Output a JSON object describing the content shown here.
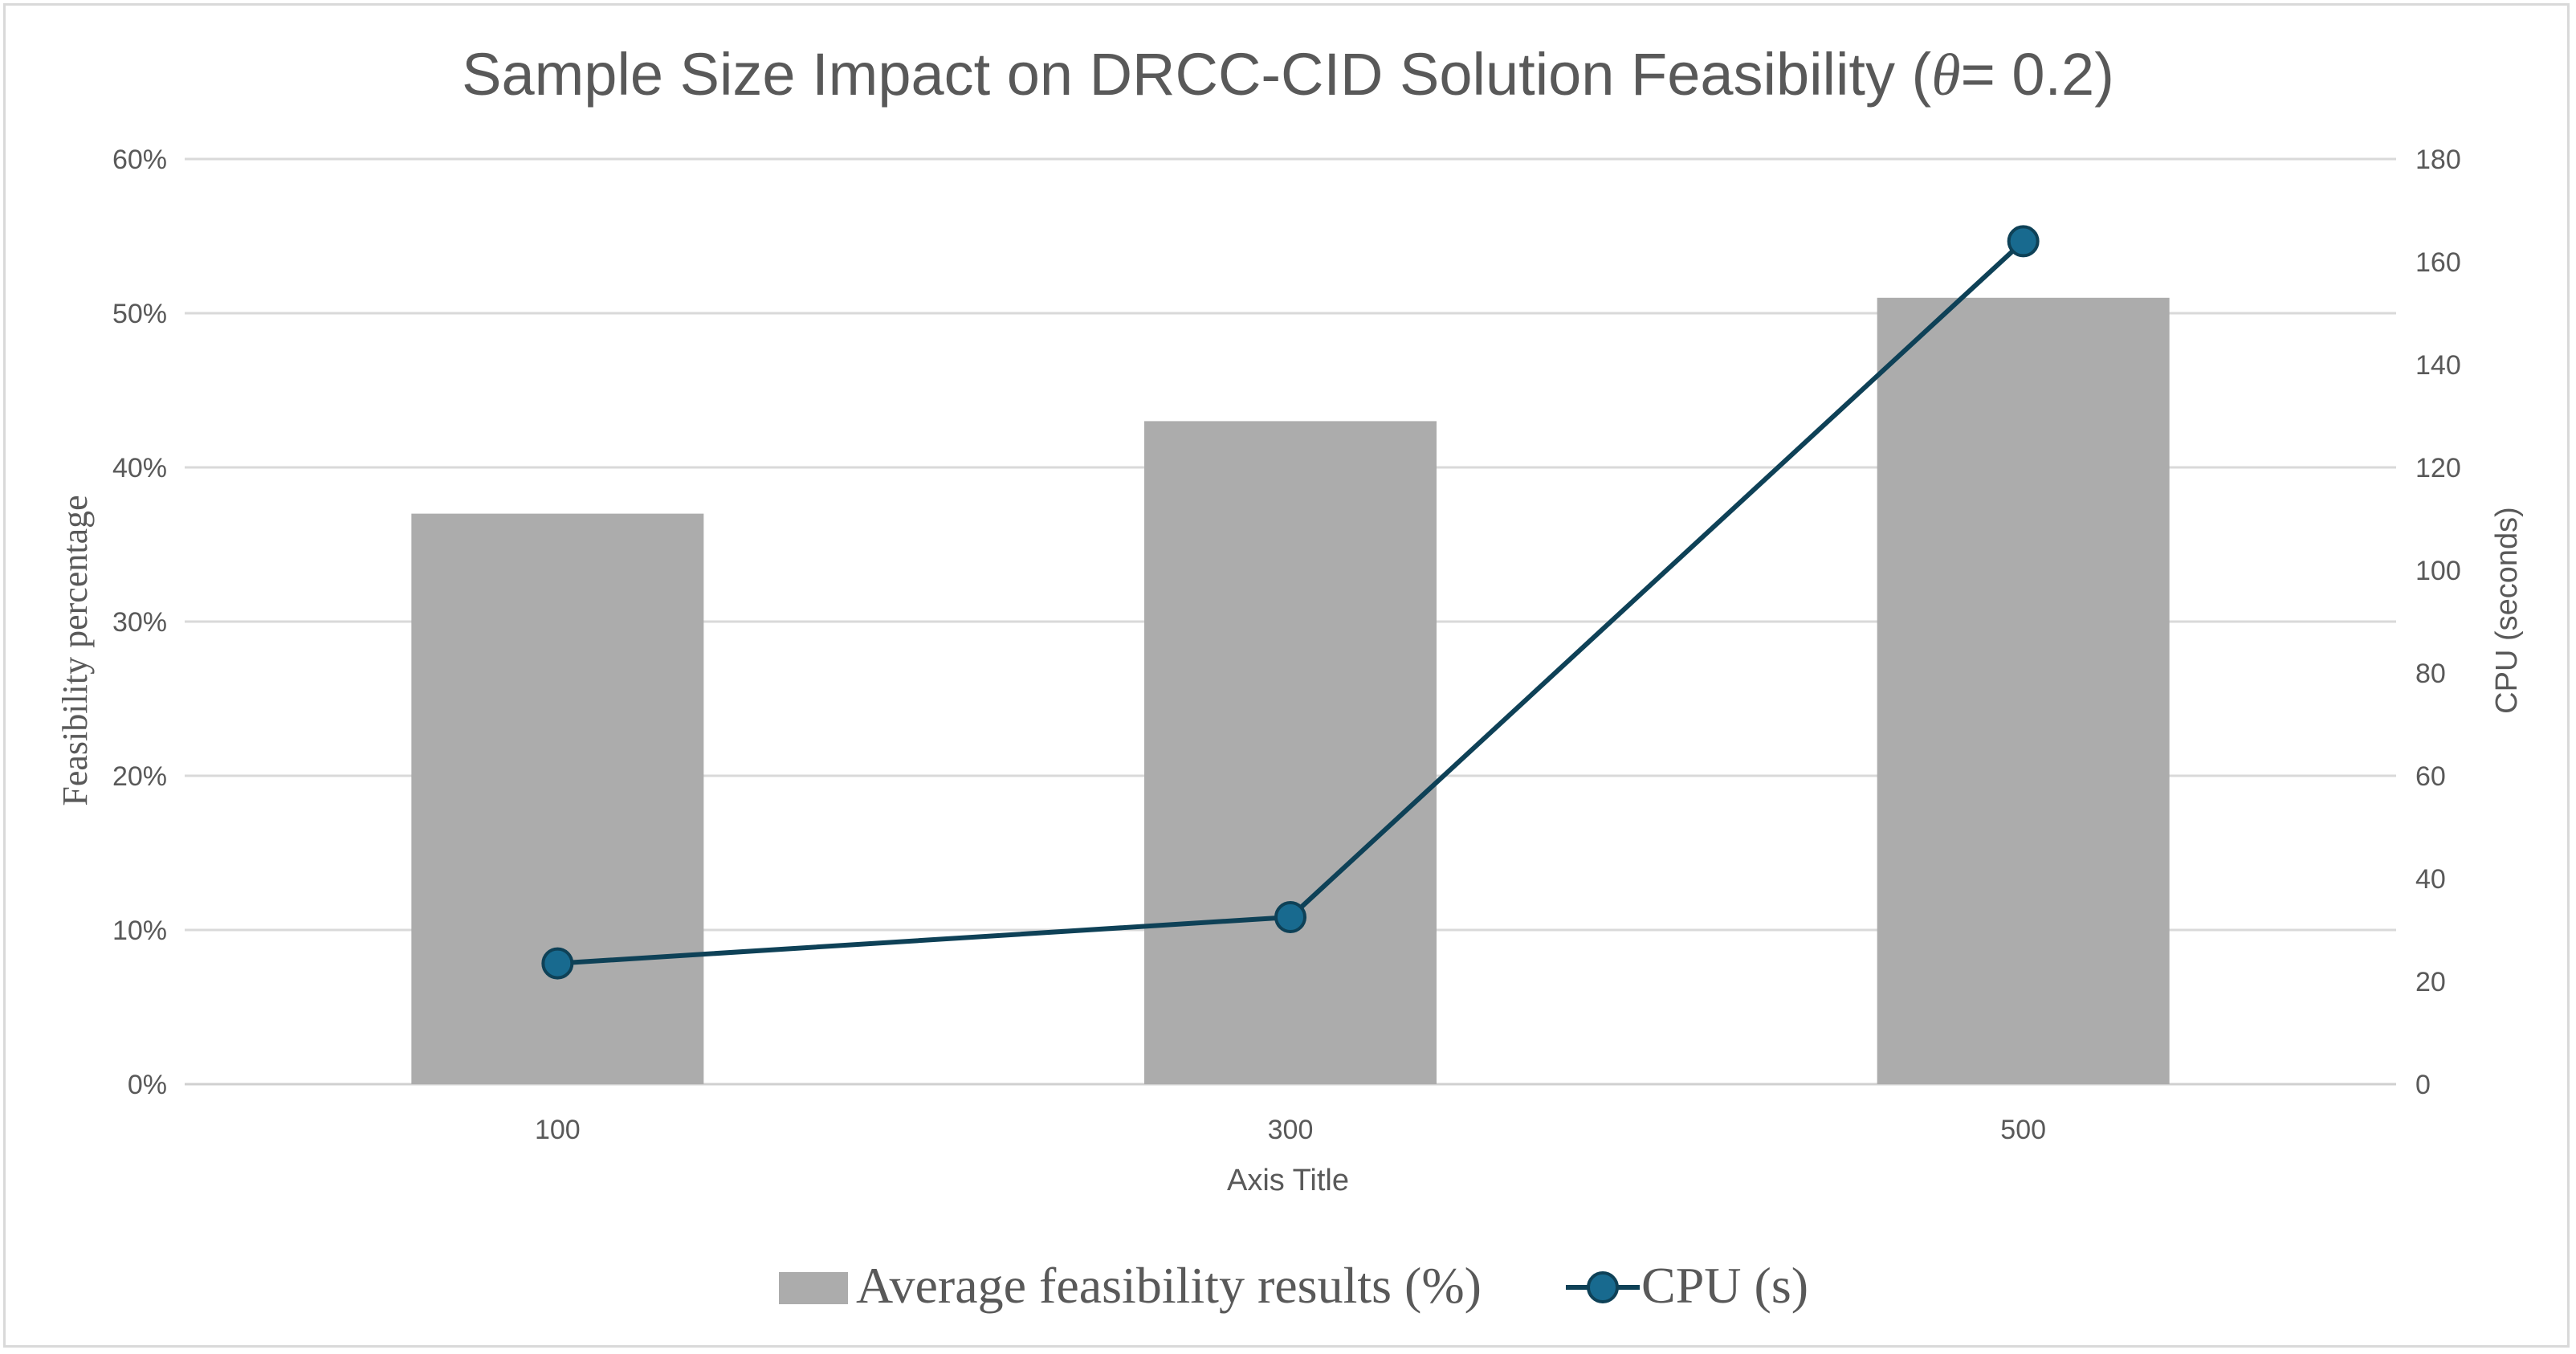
{
  "chart_data": {
    "type": "bar",
    "title_prefix": "Sample Size Impact on DRCC-CID Solution Feasibility (",
    "title_symbol": "θ",
    "title_suffix": "= 0.2)",
    "categories": [
      "100",
      "300",
      "500"
    ],
    "xlabel": "Axis Title",
    "ylabel_left": "Feasibility percentage",
    "ylabel_right": "CPU (seconds)",
    "left_axis": {
      "ylim": [
        0,
        60
      ],
      "ticks": [
        "0%",
        "10%",
        "20%",
        "30%",
        "40%",
        "50%",
        "60%"
      ],
      "tick_values": [
        0,
        10,
        20,
        30,
        40,
        50,
        60
      ]
    },
    "right_axis": {
      "ylim": [
        0,
        180
      ],
      "ticks": [
        "0",
        "20",
        "40",
        "60",
        "80",
        "100",
        "120",
        "140",
        "160",
        "180"
      ],
      "tick_values": [
        0,
        20,
        40,
        60,
        80,
        100,
        120,
        140,
        160,
        180
      ]
    },
    "series": [
      {
        "name": "Average feasibility results (%)",
        "type": "bar",
        "axis": "left",
        "values": [
          37,
          43,
          51
        ],
        "color": "#acacac"
      },
      {
        "name": "CPU (s)",
        "type": "line",
        "axis": "right",
        "values": [
          23.5,
          32.5,
          164
        ],
        "color": "#0e4157",
        "marker_color": "#186a8f"
      }
    ],
    "grid": true,
    "legend_position": "bottom"
  }
}
